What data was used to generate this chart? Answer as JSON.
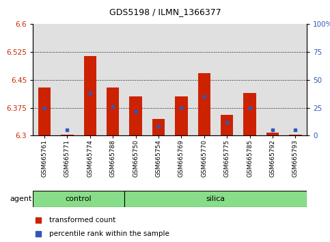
{
  "title": "GDS5198 / ILMN_1366377",
  "samples": [
    "GSM665761",
    "GSM665771",
    "GSM665774",
    "GSM665788",
    "GSM665750",
    "GSM665754",
    "GSM665769",
    "GSM665770",
    "GSM665775",
    "GSM665785",
    "GSM665792",
    "GSM665793"
  ],
  "red_values": [
    6.43,
    6.302,
    6.515,
    6.43,
    6.405,
    6.345,
    6.405,
    6.468,
    6.355,
    6.415,
    6.308,
    6.302
  ],
  "blue_values": [
    6.375,
    6.315,
    6.415,
    6.378,
    6.365,
    6.325,
    6.375,
    6.405,
    6.335,
    6.375,
    6.315,
    6.315
  ],
  "ylim_left": [
    6.3,
    6.6
  ],
  "ylim_right": [
    0,
    100
  ],
  "yticks_left": [
    6.3,
    6.375,
    6.45,
    6.525,
    6.6
  ],
  "yticks_right": [
    0,
    25,
    50,
    75,
    100
  ],
  "ytick_labels_left": [
    "6.3",
    "6.375",
    "6.45",
    "6.525",
    "6.6"
  ],
  "ytick_labels_right": [
    "0",
    "25",
    "50",
    "75",
    "100%"
  ],
  "bar_color": "#CC2200",
  "blue_color": "#3355BB",
  "base_value": 6.3,
  "green_color": "#88DD88",
  "control_label": "control",
  "silica_label": "silica",
  "agent_label": "agent",
  "legend_red": "transformed count",
  "legend_blue": "percentile rank within the sample",
  "n_control": 4,
  "n_silica": 8
}
